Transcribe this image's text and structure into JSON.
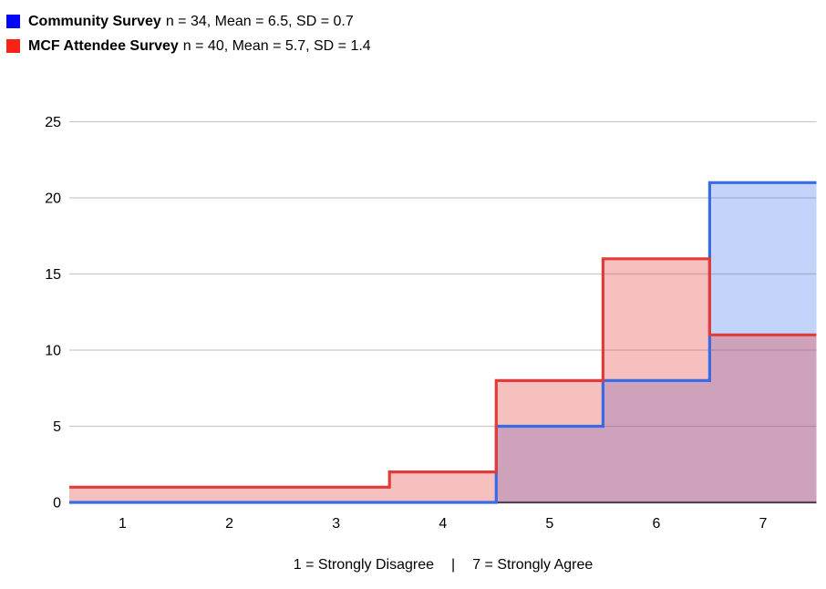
{
  "legend": {
    "items": [
      {
        "name": "Community Survey",
        "stats": "n = 34, Mean = 6.5, SD = 0.7",
        "swatch_color": "#0505fa"
      },
      {
        "name": "MCF Attendee Survey",
        "stats": "n = 40, Mean = 5.7, SD = 1.4",
        "swatch_color": "#fa2217"
      }
    ]
  },
  "chart_data": {
    "type": "area",
    "subtype": "step-histogram",
    "title": "",
    "xlabel": "",
    "ylabel": "",
    "categories": [
      1,
      2,
      3,
      4,
      5,
      6,
      7
    ],
    "bin_width": 1,
    "series": [
      {
        "name": "Community Survey",
        "values": [
          0,
          0,
          0,
          0,
          5,
          8,
          21
        ],
        "stroke": "#3a6be6",
        "fill": "rgba(59,108,235,0.30)"
      },
      {
        "name": "MCF Attendee Survey",
        "values": [
          1,
          1,
          1,
          2,
          8,
          16,
          11
        ],
        "stroke": "#e03d3a",
        "fill": "rgba(228,64,60,0.33)"
      }
    ],
    "xlim": [
      0.5,
      7.5
    ],
    "ylim": [
      0,
      25
    ],
    "yticks": [
      0,
      5,
      10,
      15,
      20,
      25
    ],
    "xticks": [
      1,
      2,
      3,
      4,
      5,
      6,
      7
    ],
    "grid": true,
    "legend_position": "top-left"
  },
  "footer": {
    "left_label": "1 = Strongly Disagree",
    "separator": "|",
    "right_label": "7 = Strongly Agree"
  }
}
